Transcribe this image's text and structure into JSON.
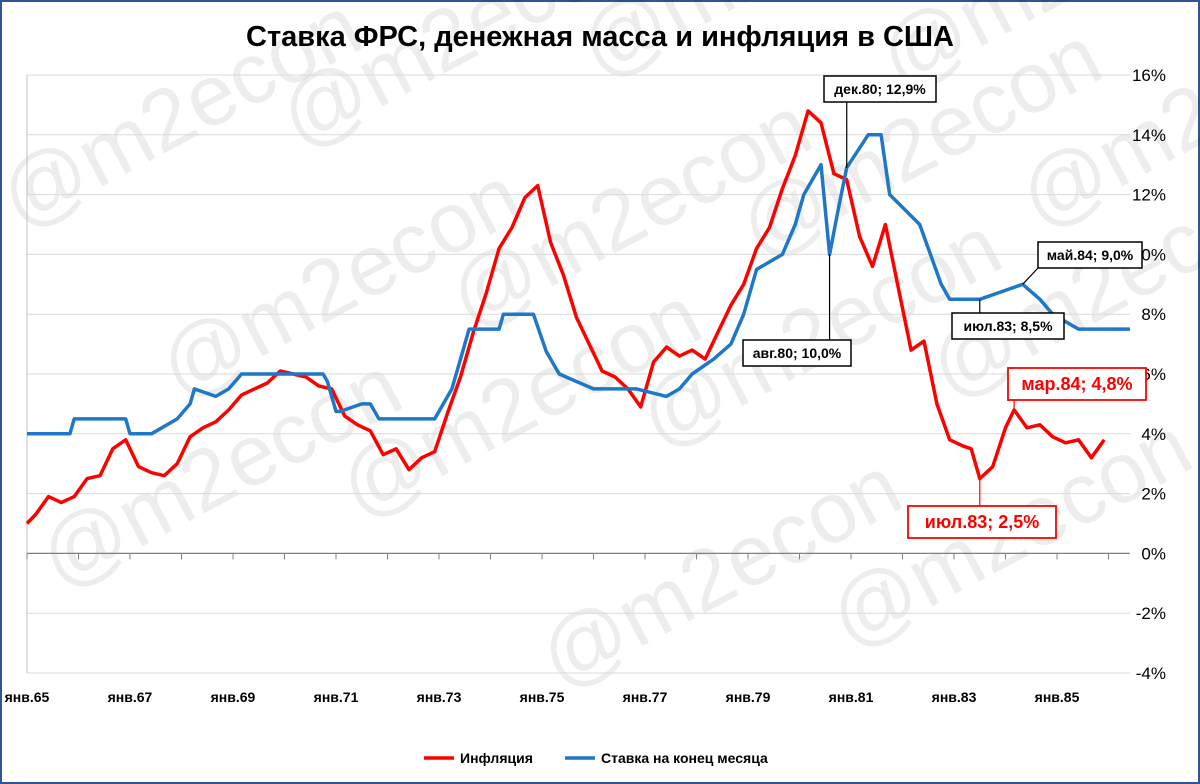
{
  "chart_data": {
    "type": "line",
    "title": "Ставка ФРС, денежная масса и инфляция в США",
    "watermark": "@m2econ",
    "ylim": [
      -4,
      16
    ],
    "y_ticks": [
      "-4%",
      "-2%",
      "0%",
      "2%",
      "4%",
      "6%",
      "8%",
      "10%",
      "12%",
      "14%",
      "16%"
    ],
    "x_range": [
      "1965-01",
      "1986-06"
    ],
    "x_ticks": [
      {
        "date": "1965-01",
        "label": "янв.65"
      },
      {
        "date": "1967-01",
        "label": "янв.67"
      },
      {
        "date": "1969-01",
        "label": "янв.69"
      },
      {
        "date": "1971-01",
        "label": "янв.71"
      },
      {
        "date": "1973-01",
        "label": "янв.73"
      },
      {
        "date": "1975-01",
        "label": "янв.75"
      },
      {
        "date": "1977-01",
        "label": "янв.77"
      },
      {
        "date": "1979-01",
        "label": "янв.79"
      },
      {
        "date": "1981-01",
        "label": "янв.81"
      },
      {
        "date": "1983-01",
        "label": "янв.83"
      },
      {
        "date": "1985-01",
        "label": "янв.85"
      }
    ],
    "grid": true,
    "legend_position": "bottom",
    "series": [
      {
        "name": "Инфляция",
        "color": "#ff0000",
        "points": [
          [
            "1965-01",
            1.0
          ],
          [
            "1965-03",
            1.3
          ],
          [
            "1965-06",
            1.9
          ],
          [
            "1965-09",
            1.7
          ],
          [
            "1965-12",
            1.9
          ],
          [
            "1966-03",
            2.5
          ],
          [
            "1966-06",
            2.6
          ],
          [
            "1966-09",
            3.5
          ],
          [
            "1966-12",
            3.8
          ],
          [
            "1967-03",
            2.9
          ],
          [
            "1967-06",
            2.7
          ],
          [
            "1967-09",
            2.6
          ],
          [
            "1967-12",
            3.0
          ],
          [
            "1968-03",
            3.9
          ],
          [
            "1968-06",
            4.2
          ],
          [
            "1968-09",
            4.4
          ],
          [
            "1968-12",
            4.8
          ],
          [
            "1969-03",
            5.3
          ],
          [
            "1969-06",
            5.5
          ],
          [
            "1969-09",
            5.7
          ],
          [
            "1969-12",
            6.1
          ],
          [
            "1970-03",
            6.0
          ],
          [
            "1970-06",
            5.9
          ],
          [
            "1970-09",
            5.6
          ],
          [
            "1970-12",
            5.5
          ],
          [
            "1971-03",
            4.6
          ],
          [
            "1971-06",
            4.3
          ],
          [
            "1971-09",
            4.1
          ],
          [
            "1971-12",
            3.3
          ],
          [
            "1972-03",
            3.5
          ],
          [
            "1972-06",
            2.8
          ],
          [
            "1972-09",
            3.2
          ],
          [
            "1972-12",
            3.4
          ],
          [
            "1973-03",
            4.7
          ],
          [
            "1973-06",
            5.9
          ],
          [
            "1973-09",
            7.4
          ],
          [
            "1973-12",
            8.7
          ],
          [
            "1974-03",
            10.2
          ],
          [
            "1974-06",
            10.9
          ],
          [
            "1974-09",
            11.9
          ],
          [
            "1974-12",
            12.3
          ],
          [
            "1975-03",
            10.4
          ],
          [
            "1975-06",
            9.3
          ],
          [
            "1975-09",
            7.9
          ],
          [
            "1975-12",
            7.0
          ],
          [
            "1976-03",
            6.1
          ],
          [
            "1976-06",
            5.9
          ],
          [
            "1976-09",
            5.5
          ],
          [
            "1976-12",
            4.9
          ],
          [
            "1977-03",
            6.4
          ],
          [
            "1977-06",
            6.9
          ],
          [
            "1977-09",
            6.6
          ],
          [
            "1977-12",
            6.8
          ],
          [
            "1978-03",
            6.5
          ],
          [
            "1978-06",
            7.4
          ],
          [
            "1978-09",
            8.3
          ],
          [
            "1978-12",
            9.0
          ],
          [
            "1979-03",
            10.2
          ],
          [
            "1979-06",
            10.9
          ],
          [
            "1979-09",
            12.2
          ],
          [
            "1979-12",
            13.3
          ],
          [
            "1980-03",
            14.8
          ],
          [
            "1980-06",
            14.4
          ],
          [
            "1980-09",
            12.7
          ],
          [
            "1980-12",
            12.5
          ],
          [
            "1981-03",
            10.6
          ],
          [
            "1981-06",
            9.6
          ],
          [
            "1981-09",
            11.0
          ],
          [
            "1981-12",
            8.9
          ],
          [
            "1982-03",
            6.8
          ],
          [
            "1982-06",
            7.1
          ],
          [
            "1982-09",
            5.0
          ],
          [
            "1982-12",
            3.8
          ],
          [
            "1983-03",
            3.6
          ],
          [
            "1983-05",
            3.5
          ],
          [
            "1983-07",
            2.5
          ],
          [
            "1983-10",
            2.9
          ],
          [
            "1984-01",
            4.2
          ],
          [
            "1984-03",
            4.8
          ],
          [
            "1984-06",
            4.2
          ],
          [
            "1984-09",
            4.3
          ],
          [
            "1984-12",
            3.9
          ],
          [
            "1985-03",
            3.7
          ],
          [
            "1985-06",
            3.8
          ],
          [
            "1985-09",
            3.2
          ],
          [
            "1985-12",
            3.8
          ]
        ]
      },
      {
        "name": "Ставка на конец месяца",
        "color": "#1f77c8",
        "points": [
          [
            "1965-01",
            4.0
          ],
          [
            "1965-11",
            4.0
          ],
          [
            "1965-12",
            4.5
          ],
          [
            "1966-12",
            4.5
          ],
          [
            "1967-01",
            4.0
          ],
          [
            "1967-06",
            4.0
          ],
          [
            "1967-12",
            4.5
          ],
          [
            "1968-03",
            5.0
          ],
          [
            "1968-04",
            5.5
          ],
          [
            "1968-09",
            5.25
          ],
          [
            "1968-12",
            5.5
          ],
          [
            "1969-03",
            6.0
          ],
          [
            "1970-10",
            6.0
          ],
          [
            "1970-11",
            5.75
          ],
          [
            "1971-01",
            4.75
          ],
          [
            "1971-02",
            4.75
          ],
          [
            "1971-07",
            5.0
          ],
          [
            "1971-09",
            5.0
          ],
          [
            "1971-11",
            4.5
          ],
          [
            "1972-12",
            4.5
          ],
          [
            "1973-04",
            5.5
          ],
          [
            "1973-06",
            6.5
          ],
          [
            "1973-08",
            7.5
          ],
          [
            "1974-03",
            7.5
          ],
          [
            "1974-04",
            8.0
          ],
          [
            "1974-11",
            8.0
          ],
          [
            "1975-02",
            6.75
          ],
          [
            "1975-05",
            6.0
          ],
          [
            "1976-01",
            5.5
          ],
          [
            "1976-11",
            5.5
          ],
          [
            "1977-06",
            5.25
          ],
          [
            "1977-09",
            5.5
          ],
          [
            "1977-12",
            6.0
          ],
          [
            "1978-05",
            6.5
          ],
          [
            "1978-09",
            7.0
          ],
          [
            "1978-12",
            8.0
          ],
          [
            "1979-03",
            9.5
          ],
          [
            "1979-09",
            10.0
          ],
          [
            "1979-12",
            11.0
          ],
          [
            "1980-02",
            12.0
          ],
          [
            "1980-06",
            13.0
          ],
          [
            "1980-08",
            10.0
          ],
          [
            "1980-10",
            11.5
          ],
          [
            "1980-12",
            12.9
          ],
          [
            "1981-05",
            14.0
          ],
          [
            "1981-08",
            14.0
          ],
          [
            "1981-10",
            12.0
          ],
          [
            "1982-05",
            11.0
          ],
          [
            "1982-10",
            9.0
          ],
          [
            "1982-12",
            8.5
          ],
          [
            "1983-07",
            8.5
          ],
          [
            "1984-05",
            9.0
          ],
          [
            "1984-09",
            8.5
          ],
          [
            "1984-12",
            8.0
          ],
          [
            "1985-06",
            7.5
          ],
          [
            "1986-06",
            7.5
          ]
        ]
      }
    ],
    "annotations": [
      {
        "text": "дек.80; 12,9%",
        "style": "black",
        "date": "1980-12",
        "value": 12.9
      },
      {
        "text": "авг.80; 10,0%",
        "style": "black",
        "date": "1980-08",
        "value": 10.0
      },
      {
        "text": "май.84; 9,0%",
        "style": "black",
        "date": "1984-05",
        "value": 9.0
      },
      {
        "text": "июл.83; 8,5%",
        "style": "black",
        "date": "1983-07",
        "value": 8.5
      },
      {
        "text": "мар.84; 4,8%",
        "style": "red",
        "date": "1984-03",
        "value": 4.8
      },
      {
        "text": "июл.83; 2,5%",
        "style": "red",
        "date": "1983-07",
        "value": 2.5
      }
    ]
  }
}
